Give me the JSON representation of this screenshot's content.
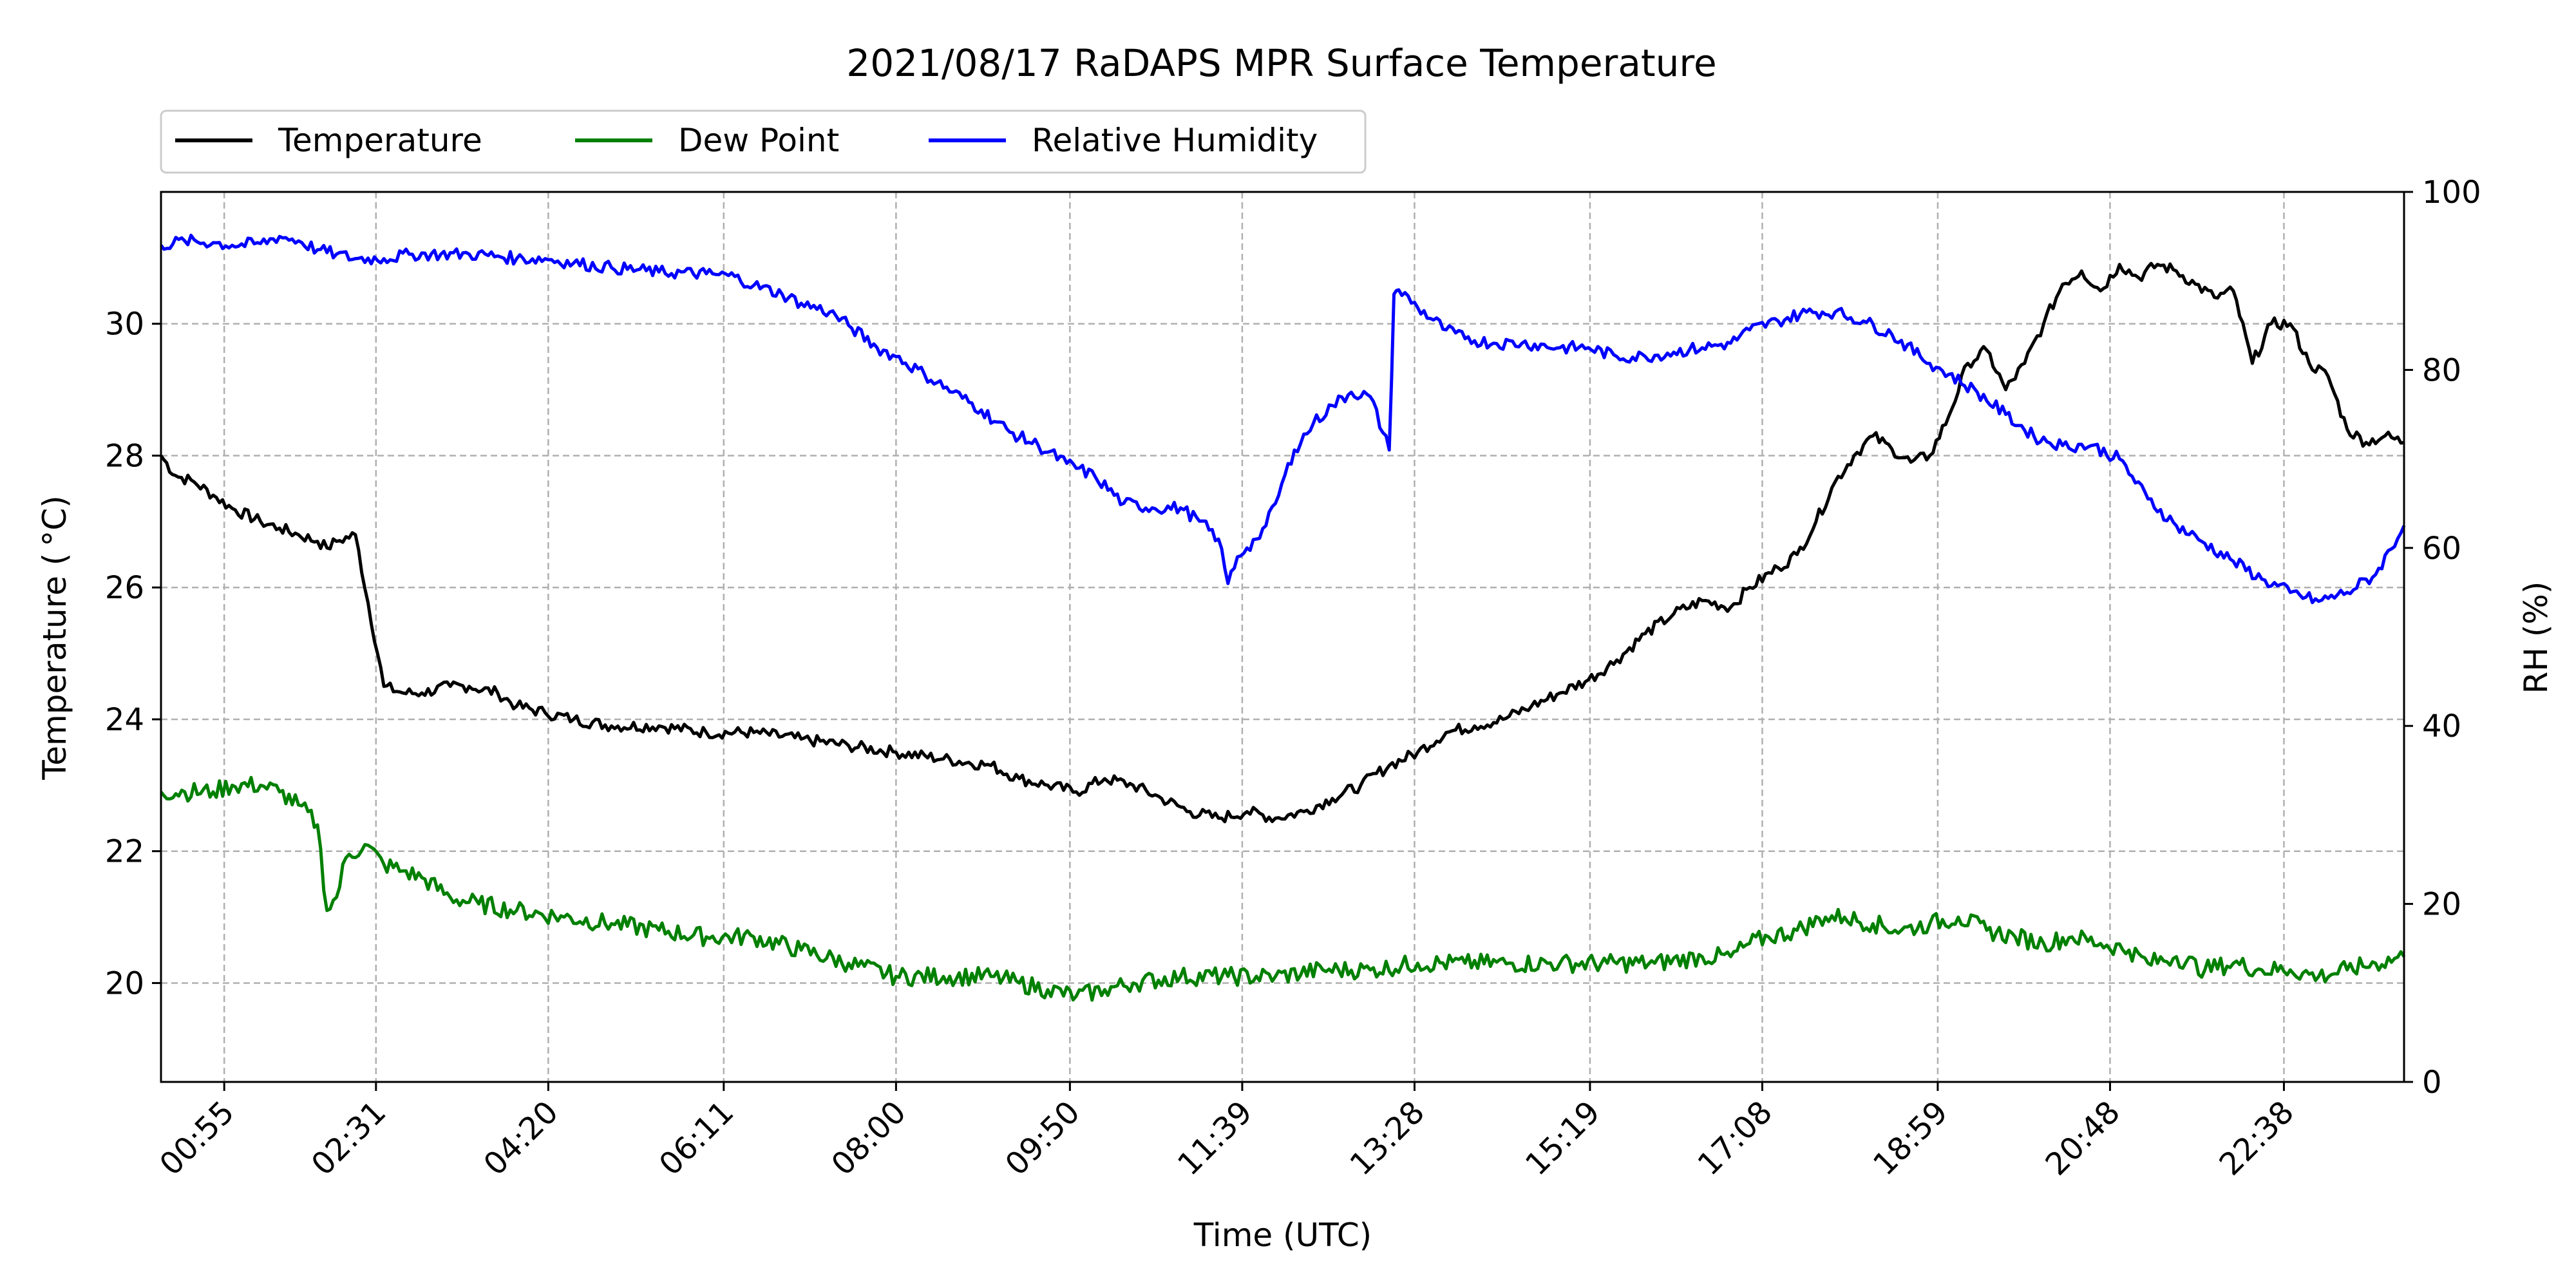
{
  "chart_data": {
    "type": "line",
    "title": "2021/08/17 RaDAPS MPR Surface Temperature",
    "xlabel": "Time (UTC)",
    "ylabel": "Temperature ($^\\circ$C)",
    "ylabel_display": "Temperature ( °C)",
    "y2label": "RH (%)",
    "x_unit": "hours UTC",
    "xlim": [
      0.25,
      23.9
    ],
    "ylim": [
      18.5,
      32.0
    ],
    "y2lim": [
      0,
      100
    ],
    "yticks": [
      20,
      22,
      24,
      26,
      28,
      30
    ],
    "y2ticks": [
      0,
      20,
      40,
      60,
      80,
      100
    ],
    "xtick_labels": [
      "00:55",
      "02:31",
      "04:20",
      "06:11",
      "08:00",
      "09:50",
      "11:39",
      "13:28",
      "15:19",
      "17:08",
      "18:59",
      "20:48",
      "22:38"
    ],
    "grid": true,
    "legend": {
      "placement": "top-left, above plot",
      "entries": [
        "Temperature",
        "Dew Point",
        "Relative Humidity"
      ]
    },
    "series": [
      {
        "name": "Temperature",
        "color": "#000000",
        "axis": "left",
        "x": [
          0.25,
          0.4,
          0.6,
          0.8,
          1.0,
          1.3,
          1.5,
          1.7,
          1.9,
          2.0,
          2.1,
          2.3,
          2.6,
          2.8,
          3.0,
          3.3,
          3.5,
          3.8,
          4.0,
          4.3,
          4.6,
          5.0,
          5.5,
          6.0,
          6.5,
          7.0,
          7.5,
          8.0,
          8.5,
          9.0,
          9.3,
          9.6,
          9.9,
          10.2,
          10.5,
          10.8,
          11.1,
          11.4,
          11.7,
          12.0,
          12.3,
          12.6,
          12.9,
          13.2,
          13.5,
          13.8,
          14.1,
          14.4,
          14.7,
          15.0,
          15.3,
          15.6,
          15.9,
          16.2,
          16.5,
          16.8,
          17.0,
          17.3,
          17.5,
          17.7,
          17.9,
          18.1,
          18.3,
          18.5,
          18.7,
          18.9,
          19.1,
          19.3,
          19.5,
          19.7,
          19.9,
          20.1,
          20.3,
          20.5,
          20.7,
          20.9,
          21.1,
          21.3,
          21.5,
          21.7,
          21.9,
          22.1,
          22.3,
          22.5,
          22.7,
          22.9,
          23.1,
          23.3,
          23.5,
          23.7,
          23.9
        ],
        "y": [
          28.0,
          27.7,
          27.6,
          27.4,
          27.2,
          27.0,
          26.9,
          26.8,
          26.7,
          26.6,
          26.7,
          26.8,
          24.5,
          24.4,
          24.4,
          24.5,
          24.5,
          24.4,
          24.2,
          24.1,
          24.0,
          23.9,
          23.9,
          23.8,
          23.8,
          23.7,
          23.6,
          23.5,
          23.4,
          23.3,
          23.1,
          23.0,
          22.9,
          23.1,
          23.0,
          22.8,
          22.6,
          22.5,
          22.6,
          22.5,
          22.6,
          22.8,
          23.0,
          23.3,
          23.5,
          23.8,
          23.9,
          24.0,
          24.2,
          24.4,
          24.6,
          24.9,
          25.3,
          25.6,
          25.8,
          25.7,
          26.0,
          26.3,
          26.5,
          27.0,
          27.6,
          28.0,
          28.3,
          28.1,
          27.9,
          28.0,
          28.6,
          29.4,
          29.6,
          29.0,
          29.4,
          30.0,
          30.6,
          30.8,
          30.5,
          30.9,
          30.7,
          30.9,
          30.8,
          30.6,
          30.4,
          30.5,
          29.4,
          30.0,
          30.0,
          29.4,
          29.2,
          28.4,
          28.2,
          28.3,
          28.2
        ]
      },
      {
        "name": "Dew Point",
        "color": "#008000",
        "axis": "left",
        "x": [
          0.25,
          0.5,
          0.8,
          1.0,
          1.3,
          1.5,
          1.7,
          1.9,
          2.0,
          2.1,
          2.2,
          2.4,
          2.6,
          2.8,
          3.0,
          3.3,
          3.6,
          4.0,
          4.5,
          5.0,
          5.5,
          6.0,
          6.5,
          7.0,
          7.5,
          8.0,
          8.5,
          9.0,
          9.3,
          9.6,
          9.9,
          10.2,
          10.5,
          11.0,
          11.5,
          12.0,
          12.5,
          13.0,
          13.5,
          14.0,
          14.5,
          15.0,
          15.5,
          16.0,
          16.5,
          16.8,
          17.0,
          17.2,
          17.5,
          17.8,
          18.0,
          18.3,
          18.6,
          18.9,
          19.2,
          19.5,
          19.8,
          20.1,
          20.4,
          20.7,
          21.0,
          21.2,
          21.5,
          21.8,
          22.1,
          22.4,
          22.7,
          23.0,
          23.3,
          23.6,
          23.9
        ],
        "y": [
          22.9,
          22.9,
          22.9,
          23.0,
          23.0,
          22.9,
          22.7,
          22.4,
          21.1,
          21.3,
          21.9,
          22.1,
          21.8,
          21.7,
          21.6,
          21.3,
          21.2,
          21.1,
          21.0,
          20.9,
          20.8,
          20.7,
          20.7,
          20.5,
          20.3,
          20.1,
          20.1,
          20.1,
          20.0,
          19.9,
          19.8,
          19.9,
          20.0,
          20.1,
          20.1,
          20.1,
          20.2,
          20.2,
          20.3,
          20.3,
          20.3,
          20.3,
          20.3,
          20.3,
          20.4,
          20.4,
          20.6,
          20.7,
          20.8,
          21.0,
          21.0,
          20.9,
          20.8,
          20.9,
          21.0,
          20.8,
          20.7,
          20.6,
          20.7,
          20.6,
          20.5,
          20.3,
          20.4,
          20.2,
          20.3,
          20.2,
          20.2,
          20.1,
          20.2,
          20.3,
          20.4
        ]
      },
      {
        "name": "Relative Humidity",
        "color": "#0000ff",
        "axis": "right",
        "x": [
          0.25,
          0.5,
          0.8,
          1.0,
          1.3,
          1.5,
          1.7,
          1.9,
          2.1,
          2.3,
          2.6,
          2.9,
          3.2,
          3.5,
          3.8,
          4.0,
          4.3,
          4.6,
          5.0,
          5.5,
          6.0,
          6.3,
          6.5,
          6.8,
          7.0,
          7.3,
          7.5,
          7.8,
          8.0,
          8.3,
          8.6,
          8.9,
          9.2,
          9.5,
          9.8,
          10.1,
          10.4,
          10.7,
          11.0,
          11.2,
          11.4,
          11.5,
          11.6,
          11.7,
          11.8,
          11.9,
          12.0,
          12.2,
          12.4,
          12.6,
          12.8,
          13.0,
          13.2,
          13.25,
          13.3,
          13.5,
          13.8,
          14.0,
          14.3,
          14.6,
          15.0,
          15.3,
          15.6,
          15.9,
          16.2,
          16.5,
          16.8,
          17.0,
          17.3,
          17.6,
          17.9,
          18.2,
          18.5,
          18.8,
          19.1,
          19.4,
          19.7,
          20.0,
          20.3,
          20.6,
          20.9,
          21.2,
          21.5,
          21.8,
          22.1,
          22.4,
          22.7,
          23.0,
          23.3,
          23.6,
          23.9
        ],
        "y": [
          94,
          94.5,
          94.3,
          94,
          94.2,
          95,
          94.5,
          93.5,
          93,
          92.5,
          92.5,
          93,
          93,
          93,
          92.8,
          92.5,
          92.5,
          92,
          91.5,
          91,
          90.8,
          90.5,
          89.5,
          88.5,
          87.5,
          86.5,
          85,
          82.5,
          81.5,
          79.5,
          77.5,
          75.5,
          73,
          71.5,
          69.5,
          68,
          65,
          64.5,
          64.5,
          63,
          61,
          56,
          59,
          60,
          61,
          62.5,
          65,
          71,
          74,
          76,
          77.5,
          77,
          71,
          88.5,
          89,
          87,
          84.5,
          83.5,
          83,
          83,
          82.5,
          82.5,
          81.5,
          81.5,
          82,
          82.5,
          83,
          84.5,
          85.5,
          86.5,
          86.5,
          85.5,
          84,
          81.5,
          79.5,
          77.5,
          75,
          72.5,
          71.5,
          71.5,
          70,
          65.5,
          62.5,
          60.5,
          58.5,
          56.5,
          55,
          54,
          55,
          57,
          62.5
        ]
      }
    ]
  }
}
